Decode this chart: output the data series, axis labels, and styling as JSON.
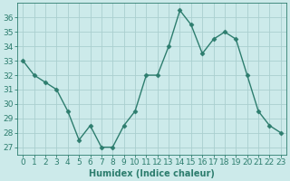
{
  "x": [
    0,
    1,
    2,
    3,
    4,
    5,
    6,
    7,
    8,
    9,
    10,
    11,
    12,
    13,
    14,
    15,
    16,
    17,
    18,
    19,
    20,
    21,
    22,
    23
  ],
  "y": [
    33,
    32,
    31.5,
    31,
    29.5,
    27.5,
    28.5,
    27,
    27,
    28.5,
    29.5,
    32,
    32,
    34,
    36.5,
    35.5,
    33.5,
    34.5,
    35,
    34.5,
    32,
    29.5,
    28.5,
    28
  ],
  "xlabel": "Humidex (Indice chaleur)",
  "ylim": [
    26.5,
    37
  ],
  "xlim": [
    -0.5,
    23.5
  ],
  "yticks": [
    27,
    28,
    29,
    30,
    31,
    32,
    33,
    34,
    35,
    36
  ],
  "xticks": [
    0,
    1,
    2,
    3,
    4,
    5,
    6,
    7,
    8,
    9,
    10,
    11,
    12,
    13,
    14,
    15,
    16,
    17,
    18,
    19,
    20,
    21,
    22,
    23
  ],
  "line_color": "#2d7d6e",
  "marker": "D",
  "marker_size": 2.5,
  "bg_color": "#cceaea",
  "grid_color": "#aacfcf",
  "font_color": "#2d7d6e",
  "xlabel_fontsize": 7,
  "tick_fontsize": 6.5,
  "linewidth": 1.0
}
